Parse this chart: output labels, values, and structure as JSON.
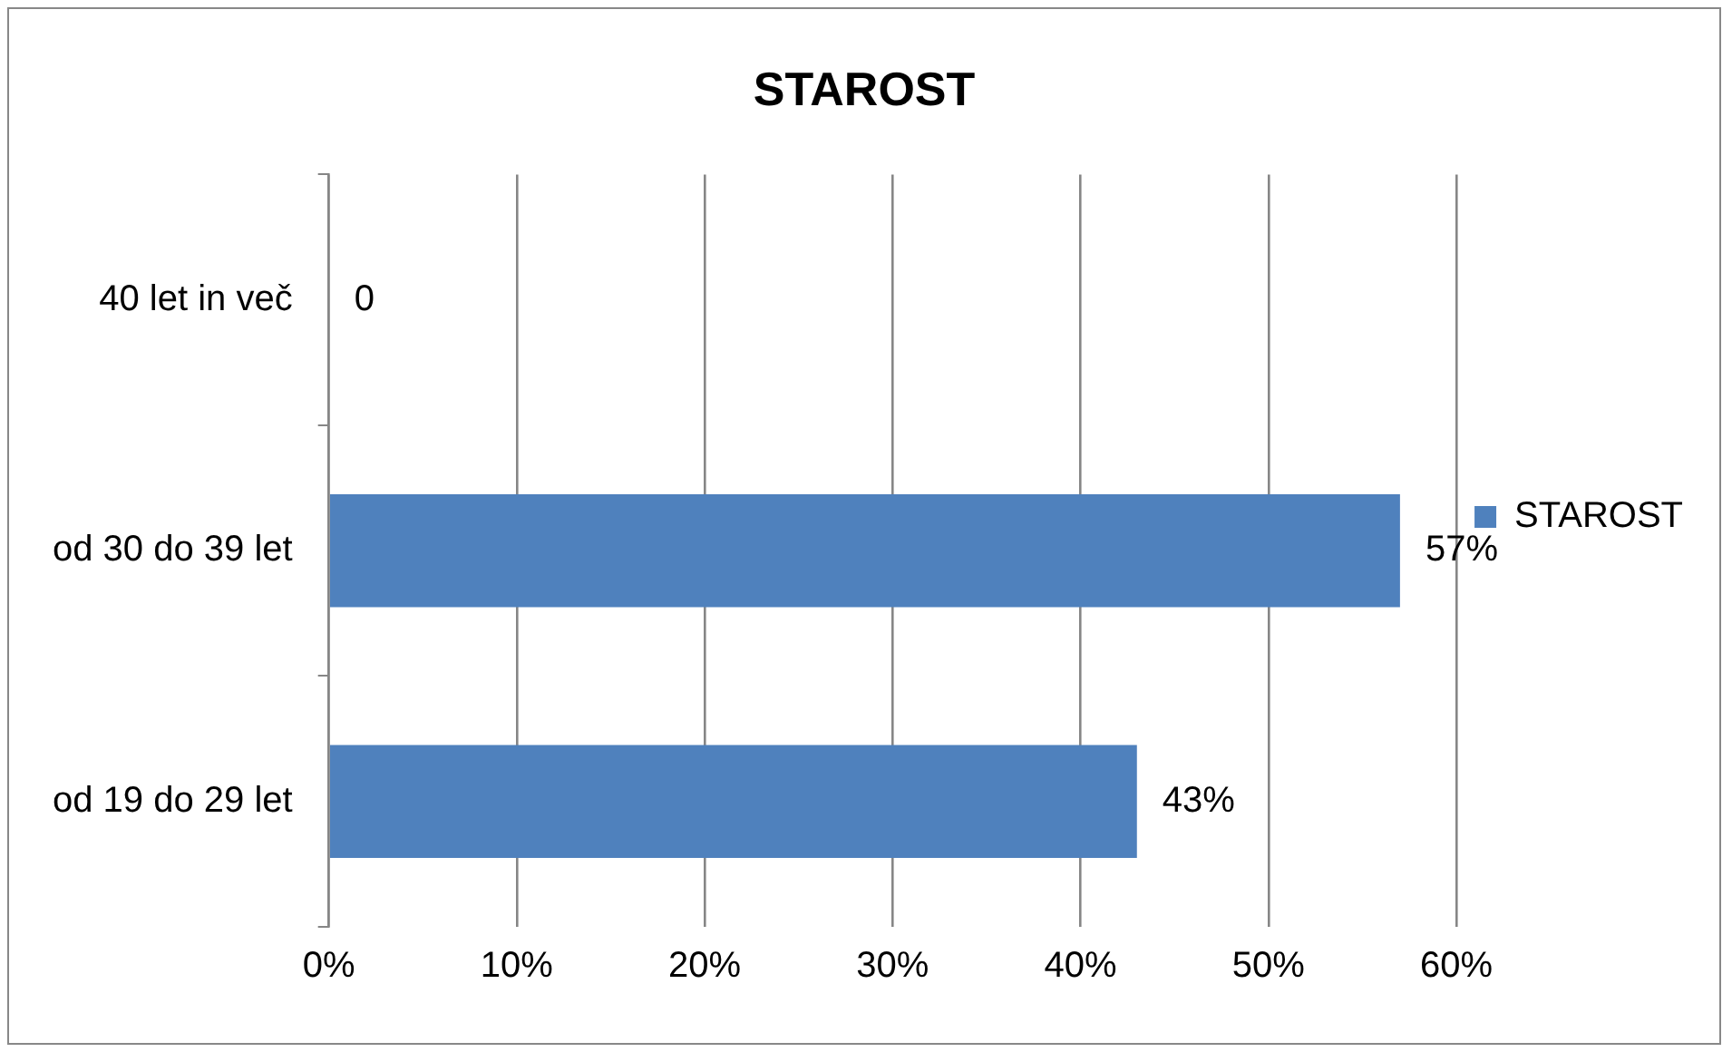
{
  "chart_data": {
    "type": "bar",
    "title": "STAROST",
    "orientation": "horizontal",
    "categories": [
      "40 let in več",
      "od 30 do 39 let",
      "od 19 do 29 let"
    ],
    "series": [
      {
        "name": "STAROST",
        "color": "#4f81bd",
        "values": [
          0,
          57,
          43
        ],
        "value_labels": [
          "0",
          "57%",
          "43%"
        ]
      }
    ],
    "xlim": [
      0,
      60
    ],
    "xticks": [
      {
        "value": 0,
        "label": "0%"
      },
      {
        "value": 10,
        "label": "10%"
      },
      {
        "value": 20,
        "label": "20%"
      },
      {
        "value": 30,
        "label": "30%"
      },
      {
        "value": 40,
        "label": "40%"
      },
      {
        "value": 50,
        "label": "50%"
      },
      {
        "value": 60,
        "label": "60%"
      }
    ],
    "grid": "x",
    "legend": "right"
  }
}
